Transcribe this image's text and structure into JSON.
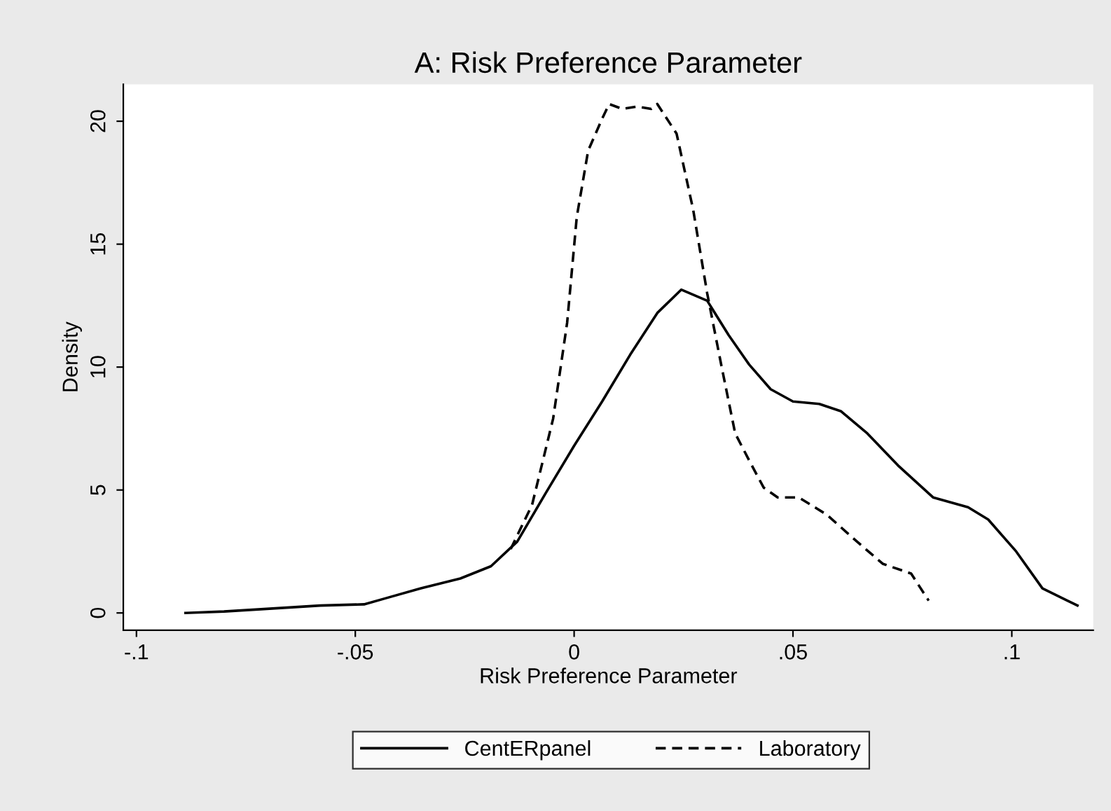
{
  "chart_data": {
    "type": "line",
    "title": "A: Risk Preference Parameter",
    "xlabel": "Risk Preference Parameter",
    "ylabel": "Density",
    "xlim": [
      -0.103,
      0.1186
    ],
    "ylim": [
      -0.7,
      21.5
    ],
    "xticks": [
      {
        "value": -0.1,
        "label": "-.1"
      },
      {
        "value": -0.05,
        "label": "-.05"
      },
      0,
      {
        "value": 0.05,
        "label": ".05"
      },
      {
        "value": 0.1,
        "label": ".1"
      }
    ],
    "yticks": [
      0,
      5,
      10,
      15,
      20
    ],
    "grid": false,
    "legend": "bottom",
    "marker": "none",
    "series": [
      {
        "name": "CentERpanel",
        "color": "#000000",
        "line_style": "solid",
        "x": [
          -0.0888,
          -0.08,
          -0.067,
          -0.058,
          -0.048,
          -0.043,
          -0.035,
          -0.026,
          -0.019,
          -0.013,
          -0.0064,
          0,
          0.0064,
          0.0128,
          0.019,
          0.0245,
          0.0304,
          0.0353,
          0.04,
          0.0449,
          0.05,
          0.056,
          0.061,
          0.067,
          0.074,
          0.082,
          0.09,
          0.0946,
          0.101,
          0.107,
          0.115
        ],
        "values": [
          0,
          0.06,
          0.2,
          0.3,
          0.35,
          0.6,
          1.0,
          1.4,
          1.9,
          2.9,
          4.9,
          6.8,
          8.6,
          10.5,
          12.2,
          13.15,
          12.7,
          11.3,
          10.1,
          9.1,
          8.6,
          8.5,
          8.2,
          7.3,
          6.0,
          4.7,
          4.3,
          3.8,
          2.5,
          1.0,
          0.3
        ]
      },
      {
        "name": "Laboratory",
        "color": "#000000",
        "line_style": "dashed",
        "x": [
          -0.0145,
          -0.0096,
          -0.0048,
          -0.0016,
          0.0006,
          0.0032,
          0.0064,
          0.008,
          0.011,
          0.0144,
          0.0176,
          0.019,
          0.0234,
          0.0272,
          0.0304,
          0.0336,
          0.0368,
          0.04,
          0.0433,
          0.0465,
          0.0513,
          0.0577,
          0.064,
          0.0705,
          0.077,
          0.081
        ],
        "values": [
          2.6,
          4.4,
          7.9,
          11.8,
          16.1,
          18.8,
          20.1,
          20.7,
          20.5,
          20.6,
          20.5,
          20.7,
          19.5,
          16.4,
          13.0,
          10.1,
          7.3,
          6.2,
          5.1,
          4.7,
          4.7,
          4.0,
          3.0,
          2.0,
          1.6,
          0.5
        ]
      }
    ]
  }
}
